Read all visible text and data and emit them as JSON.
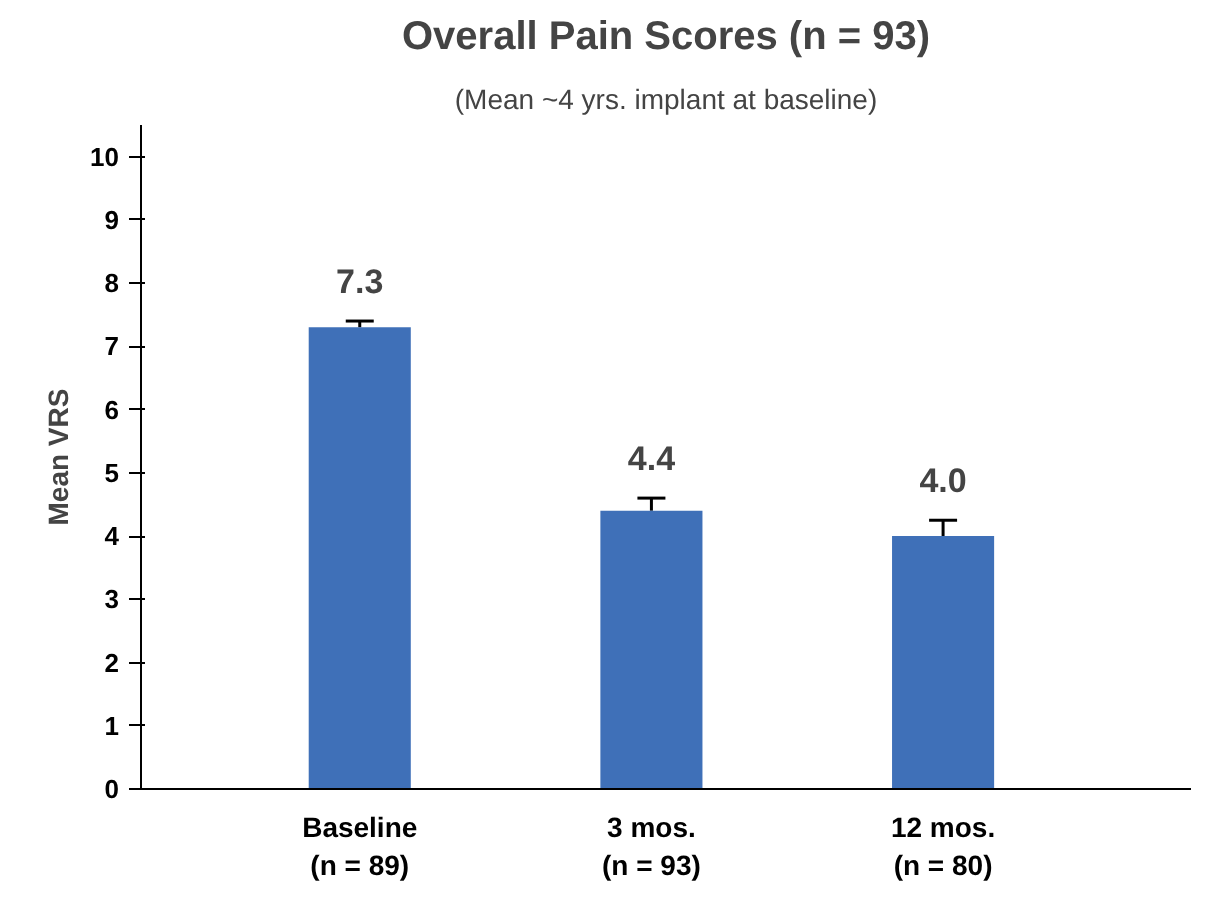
{
  "chart_data": {
    "type": "bar",
    "title": "Overall Pain Scores (n = 93)",
    "subtitle": "(Mean ~4 yrs. implant at baseline)",
    "ylabel": "Mean VRS",
    "categories": [
      "Baseline\n(n = 89)",
      "3 mos.\n(n = 93)",
      "12 mos.\n(n = 80)"
    ],
    "values": [
      7.3,
      4.4,
      4.0
    ],
    "errors": [
      [
        7.3,
        7.4
      ],
      [
        4.4,
        4.6
      ],
      [
        4.0,
        4.25
      ]
    ],
    "color": "#3f70b8",
    "value_labels": [
      "7.3",
      "4.4",
      "4.0"
    ],
    "ylim": [
      0,
      10.5
    ],
    "yticks": [
      0,
      1,
      2,
      3,
      4,
      5,
      6,
      7,
      8,
      9,
      10
    ],
    "grid": false
  }
}
